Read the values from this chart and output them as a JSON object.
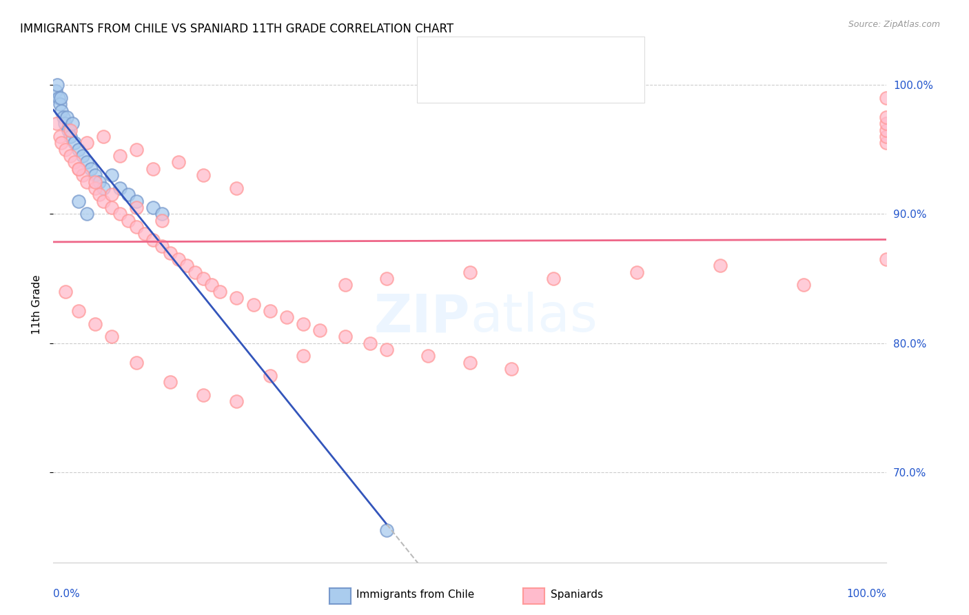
{
  "title": "IMMIGRANTS FROM CHILE VS SPANIARD 11TH GRADE CORRELATION CHART",
  "source": "Source: ZipAtlas.com",
  "ylabel": "11th Grade",
  "right_ytick_labels": [
    "70.0%",
    "80.0%",
    "90.0%",
    "100.0%"
  ],
  "right_ytick_values": [
    70,
    80,
    90,
    100
  ],
  "legend_label_blue": "Immigrants from Chile",
  "legend_label_pink": "Spaniards",
  "blue_face_color": "#AACCEE",
  "blue_edge_color": "#7799CC",
  "pink_face_color": "#FFBBCC",
  "pink_edge_color": "#FF9999",
  "blue_line_color": "#3355BB",
  "pink_line_color": "#EE6688",
  "dashed_color": "#BBBBBB",
  "r_n_color": "#2255CC",
  "text_color": "#222222",
  "xlim": [
    0,
    100
  ],
  "ylim": [
    63,
    103
  ],
  "blue_x": [
    0.3,
    0.5,
    0.6,
    0.8,
    0.9,
    1.0,
    1.2,
    1.4,
    1.6,
    1.8,
    2.0,
    2.3,
    2.5,
    3.0,
    3.5,
    4.0,
    4.5,
    5.0,
    5.5,
    6.0,
    7.0,
    8.0,
    9.0,
    10.0,
    12.0,
    13.0,
    3.0,
    4.0,
    40.0
  ],
  "blue_y": [
    99.5,
    100.0,
    99.0,
    98.5,
    99.0,
    98.0,
    97.5,
    97.0,
    97.5,
    96.5,
    96.0,
    97.0,
    95.5,
    95.0,
    94.5,
    94.0,
    93.5,
    93.0,
    92.5,
    92.0,
    93.0,
    92.0,
    91.5,
    91.0,
    90.5,
    90.0,
    91.0,
    90.0,
    65.5
  ],
  "pink_x": [
    0.4,
    0.8,
    1.0,
    1.5,
    2.0,
    2.5,
    3.0,
    3.5,
    4.0,
    5.0,
    5.5,
    6.0,
    7.0,
    8.0,
    9.0,
    10.0,
    11.0,
    12.0,
    13.0,
    14.0,
    15.0,
    16.0,
    17.0,
    18.0,
    19.0,
    20.0,
    22.0,
    24.0,
    26.0,
    28.0,
    30.0,
    32.0,
    35.0,
    38.0,
    40.0,
    45.0,
    50.0,
    55.0,
    2.0,
    4.0,
    6.0,
    8.0,
    10.0,
    12.0,
    15.0,
    18.0,
    22.0,
    3.0,
    5.0,
    7.0,
    10.0,
    13.0,
    1.5,
    3.0,
    5.0,
    7.0,
    10.0,
    14.0,
    18.0,
    22.0,
    26.0,
    30.0,
    35.0,
    40.0,
    50.0,
    60.0,
    70.0,
    80.0,
    90.0,
    100.0,
    100.0,
    100.0,
    100.0,
    100.0,
    100.0,
    100.0
  ],
  "pink_y": [
    97.0,
    96.0,
    95.5,
    95.0,
    94.5,
    94.0,
    93.5,
    93.0,
    92.5,
    92.0,
    91.5,
    91.0,
    90.5,
    90.0,
    89.5,
    89.0,
    88.5,
    88.0,
    87.5,
    87.0,
    86.5,
    86.0,
    85.5,
    85.0,
    84.5,
    84.0,
    83.5,
    83.0,
    82.5,
    82.0,
    81.5,
    81.0,
    80.5,
    80.0,
    79.5,
    79.0,
    78.5,
    78.0,
    96.5,
    95.5,
    96.0,
    94.5,
    95.0,
    93.5,
    94.0,
    93.0,
    92.0,
    93.5,
    92.5,
    91.5,
    90.5,
    89.5,
    84.0,
    82.5,
    81.5,
    80.5,
    78.5,
    77.0,
    76.0,
    75.5,
    77.5,
    79.0,
    84.5,
    85.0,
    85.5,
    85.0,
    85.5,
    86.0,
    84.5,
    86.5,
    95.5,
    96.0,
    96.5,
    97.0,
    97.5,
    99.0
  ]
}
